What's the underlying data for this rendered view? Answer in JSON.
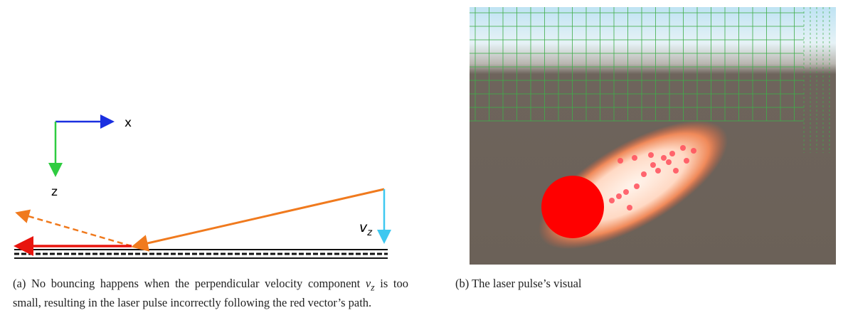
{
  "figure_a": {
    "axis_x_label": "x",
    "axis_z_label": "z",
    "velocity_label": "v",
    "velocity_label_sub": "z",
    "caption": {
      "tag": "(a)",
      "text_before": "No bouncing happens when the perpendicular velocity component",
      "math_var": "v",
      "math_sub": "z",
      "text_after": "is too small, resulting in the laser pulse incorrectly following the red vector’s path."
    }
  },
  "figure_b": {
    "caption": {
      "tag": "(b)",
      "text": "The laser pulse’s visual"
    }
  }
}
